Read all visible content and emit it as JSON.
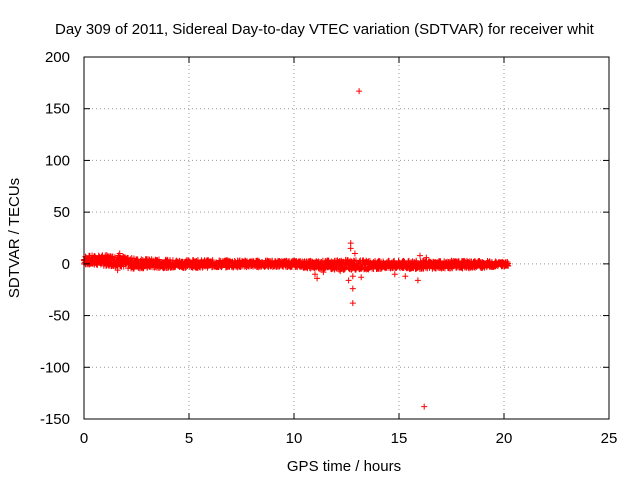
{
  "chart_data": {
    "type": "scatter",
    "title": "Day 309 of 2011, Sidereal Day-to-day VTEC variation (SDTVAR) for receiver whit",
    "xlabel": "GPS time / hours",
    "ylabel": "SDTVAR / TECUs",
    "xlim": [
      0,
      25
    ],
    "ylim": [
      -150,
      200
    ],
    "xticks": [
      0,
      5,
      10,
      15,
      20,
      25
    ],
    "yticks": [
      -150,
      -100,
      -50,
      0,
      50,
      100,
      150,
      200
    ],
    "xtick_labels": [
      "0",
      "5",
      "10",
      "15",
      "20",
      "25"
    ],
    "ytick_labels": [
      "-150",
      "-100",
      "-50",
      "0",
      "50",
      "100",
      "150",
      "200"
    ],
    "grid": true,
    "marker": "plus",
    "series_color": "#ff0000",
    "band": {
      "x_start": 0.0,
      "x_end": 20.2,
      "upper": [
        [
          0.0,
          8
        ],
        [
          1.8,
          9
        ],
        [
          2.0,
          6
        ],
        [
          4.0,
          4
        ],
        [
          10.0,
          3
        ],
        [
          11.0,
          3
        ],
        [
          12.5,
          4
        ],
        [
          14.0,
          3
        ],
        [
          16.0,
          3
        ],
        [
          19.0,
          3
        ],
        [
          20.2,
          2
        ]
      ],
      "lower": [
        [
          0.0,
          -1
        ],
        [
          1.8,
          -3
        ],
        [
          2.0,
          -5
        ],
        [
          4.0,
          -4
        ],
        [
          10.0,
          -3
        ],
        [
          11.0,
          -5
        ],
        [
          12.5,
          -6
        ],
        [
          14.0,
          -5
        ],
        [
          16.0,
          -5
        ],
        [
          19.0,
          -4
        ],
        [
          20.2,
          -2
        ]
      ]
    },
    "points": [
      [
        13.1,
        167
      ],
      [
        16.2,
        -138
      ],
      [
        12.8,
        -38
      ],
      [
        12.8,
        -24
      ],
      [
        12.7,
        20
      ],
      [
        12.7,
        15
      ],
      [
        12.8,
        -12
      ],
      [
        12.6,
        -16
      ],
      [
        11.1,
        -14
      ],
      [
        11.0,
        -10
      ],
      [
        11.4,
        -8
      ],
      [
        12.9,
        10
      ],
      [
        13.2,
        -13
      ],
      [
        16.0,
        8
      ],
      [
        16.3,
        6
      ],
      [
        15.3,
        -12
      ],
      [
        14.8,
        -10
      ],
      [
        15.9,
        -16
      ],
      [
        1.7,
        10
      ],
      [
        1.6,
        -6
      ],
      [
        10.0,
        2
      ],
      [
        12.2,
        -7
      ]
    ]
  }
}
